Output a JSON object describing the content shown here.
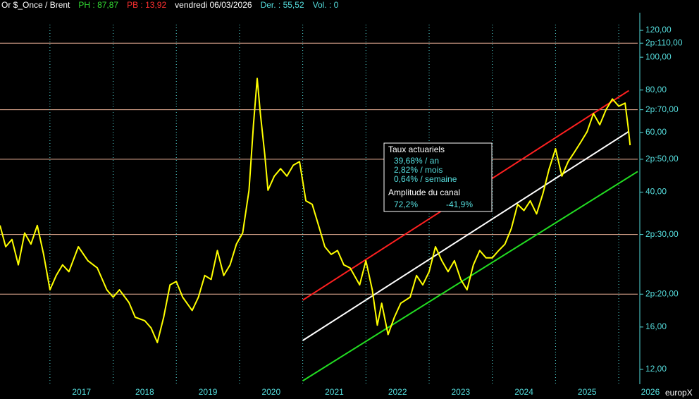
{
  "chart_data": {
    "type": "line",
    "header": [
      {
        "text": "Or $_Once / Brent",
        "color": "#ffffff"
      },
      {
        "text": "PH : 87,87",
        "color": "#33dd33"
      },
      {
        "text": "PB : 13,92",
        "color": "#ff3030"
      },
      {
        "text": "vendredi 06/03/2026",
        "color": "#ffffff"
      },
      {
        "text": "Der. : 55,52",
        "color": "#55dddd"
      },
      {
        "text": "Vol. : 0",
        "color": "#55dddd"
      }
    ],
    "brand": "europX",
    "log_scale": true,
    "xlim": [
      2016.21,
      2026.3
    ],
    "ylim": [
      10.85,
      135.3
    ],
    "xticks": [
      {
        "value": 2017,
        "label": "2017"
      },
      {
        "value": 2018,
        "label": "2018"
      },
      {
        "value": 2019,
        "label": "2019"
      },
      {
        "value": 2020,
        "label": "2020"
      },
      {
        "value": 2021,
        "label": "2021"
      },
      {
        "value": 2022,
        "label": "2022"
      },
      {
        "value": 2023,
        "label": "2023"
      },
      {
        "value": 2024,
        "label": "2024"
      },
      {
        "value": 2025,
        "label": "2025"
      },
      {
        "value": 2026,
        "label": "2026"
      }
    ],
    "yticks": [
      {
        "value": 120,
        "label": "120,00"
      },
      {
        "value": 110,
        "label": "2p:110,00",
        "line": true
      },
      {
        "value": 100,
        "label": "100,00"
      },
      {
        "value": 80,
        "label": "80,00"
      },
      {
        "value": 70,
        "label": "2p:70,00",
        "line": true
      },
      {
        "value": 60,
        "label": "60,00"
      },
      {
        "value": 50,
        "label": "2p:50,00",
        "line": true
      },
      {
        "value": 40,
        "label": "40,00"
      },
      {
        "value": 30,
        "label": "2p:30,00",
        "line": true
      },
      {
        "value": 20,
        "label": "2p:20,00",
        "line": true
      },
      {
        "value": 16,
        "label": "16,00"
      },
      {
        "value": 12,
        "label": "12,00"
      }
    ],
    "series": [
      {
        "color": "#ffff00",
        "x": [
          2016.21,
          2016.3,
          2016.4,
          2016.5,
          2016.6,
          2016.7,
          2016.8,
          2016.9,
          2017.0,
          2017.1,
          2017.2,
          2017.3,
          2017.45,
          2017.6,
          2017.75,
          2017.9,
          2018.0,
          2018.1,
          2018.25,
          2018.35,
          2018.5,
          2018.6,
          2018.7,
          2018.8,
          2018.9,
          2019.0,
          2019.1,
          2019.25,
          2019.35,
          2019.45,
          2019.55,
          2019.65,
          2019.75,
          2019.85,
          2019.95,
          2020.05,
          2020.15,
          2020.22,
          2020.28,
          2020.33,
          2020.4,
          2020.45,
          2020.55,
          2020.65,
          2020.75,
          2020.85,
          2020.95,
          2021.05,
          2021.15,
          2021.25,
          2021.35,
          2021.45,
          2021.55,
          2021.65,
          2021.75,
          2021.9,
          2022.0,
          2022.1,
          2022.18,
          2022.25,
          2022.35,
          2022.45,
          2022.55,
          2022.7,
          2022.8,
          2022.9,
          2023.0,
          2023.1,
          2023.2,
          2023.3,
          2023.4,
          2023.5,
          2023.6,
          2023.7,
          2023.8,
          2023.9,
          2024.0,
          2024.1,
          2024.2,
          2024.3,
          2024.4,
          2024.5,
          2024.6,
          2024.7,
          2024.8,
          2024.9,
          2025.0,
          2025.1,
          2025.2,
          2025.3,
          2025.4,
          2025.5,
          2025.6,
          2025.7,
          2025.8,
          2025.9,
          2026.0,
          2026.1,
          2026.15,
          2026.18
        ],
        "values": [
          31.9,
          27.6,
          29,
          24.4,
          30.3,
          28.1,
          31.9,
          26.2,
          20.6,
          22.7,
          24.4,
          23.3,
          27.6,
          25.1,
          23.9,
          20.6,
          19.6,
          20.6,
          18.9,
          17.1,
          16.7,
          15.9,
          14.4,
          17.1,
          21.3,
          21.8,
          19.6,
          17.9,
          19.6,
          22.7,
          22.1,
          26.9,
          22.7,
          24.4,
          28.1,
          30.3,
          40.5,
          63.2,
          86.6,
          68.2,
          51.5,
          40.5,
          44.6,
          46.9,
          44.6,
          48,
          49.2,
          37.7,
          36.8,
          31.9,
          27.6,
          26.2,
          26.9,
          24.4,
          23.9,
          21.3,
          25.1,
          20.6,
          16.2,
          18.8,
          15.2,
          17.1,
          18.8,
          19.6,
          22.7,
          21.3,
          23.3,
          27.6,
          25.1,
          23.3,
          25.1,
          22.1,
          20.6,
          24.4,
          26.9,
          25.6,
          25.6,
          26.9,
          28.1,
          31.2,
          36.8,
          35.3,
          37.7,
          34.5,
          39.6,
          46.9,
          53.7,
          44.6,
          49.2,
          52.5,
          56.2,
          60.3,
          68.2,
          63.2,
          70.1,
          75.3,
          71.7,
          73.2,
          62.1,
          55
        ]
      }
    ],
    "channels": [
      {
        "color": "#ff2020",
        "x": [
          2021.0,
          2026.16
        ],
        "values": [
          19.2,
          79.7
        ]
      },
      {
        "color": "#ffffff",
        "x": [
          2021.0,
          2026.16
        ],
        "values": [
          14.6,
          60.4
        ]
      },
      {
        "color": "#22dd22",
        "x": [
          2021.0,
          2026.3
        ],
        "values": [
          11.1,
          46.0
        ]
      }
    ],
    "info_box": {
      "title": "Taux actuariels",
      "rates": [
        "39,68% / an",
        "2,82% / mois",
        "0,64% / semaine"
      ],
      "amplitude_title": "Amplitude du canal",
      "amplitude": [
        "72,2%",
        "-41,9%"
      ]
    }
  }
}
